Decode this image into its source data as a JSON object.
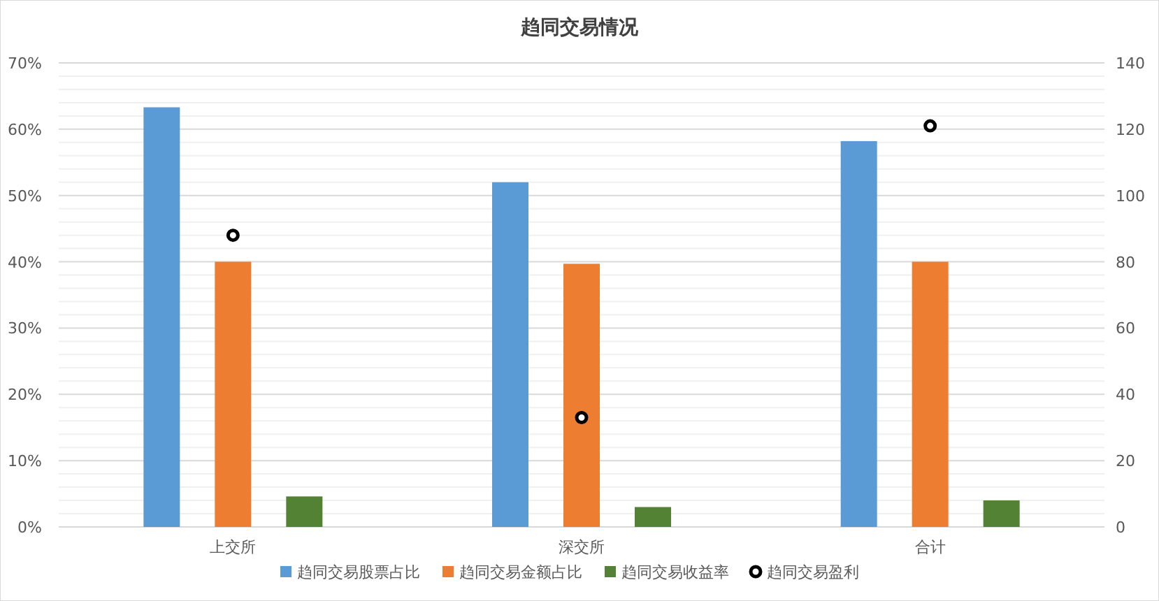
{
  "chart_data": {
    "type": "bar",
    "title": "趋同交易情况",
    "categories": [
      "上交所",
      "深交所",
      "合计"
    ],
    "series": [
      {
        "name": "趋同交易股票占比",
        "color": "#5b9bd5",
        "values": [
          63.3,
          52,
          58.2
        ]
      },
      {
        "name": "趋同交易金额占比",
        "color": "#ed7d31",
        "values": [
          40,
          39.7,
          40
        ]
      },
      {
        "name": "趋同交易收益率",
        "color": "#548235",
        "values": [
          4.6,
          3,
          4
        ]
      },
      {
        "name": "趋同交易盈利",
        "type": "scatter",
        "axis": "y2",
        "color": "#000000",
        "marker": "circle",
        "values": [
          88,
          33,
          121
        ]
      }
    ],
    "ylim": [
      0,
      70
    ],
    "yticks": [
      {
        "value": 0,
        "label": "0%"
      },
      {
        "value": 10,
        "label": "10%"
      },
      {
        "value": 20,
        "label": "20%"
      },
      {
        "value": 30,
        "label": "30%"
      },
      {
        "value": 40,
        "label": "40%"
      },
      {
        "value": 50,
        "label": "50%"
      },
      {
        "value": 60,
        "label": "60%"
      },
      {
        "value": 70,
        "label": "70%"
      }
    ],
    "y2lim": [
      0,
      140
    ],
    "y2ticks": [
      0,
      20,
      40,
      60,
      80,
      100,
      120,
      140
    ],
    "grid": "y",
    "legend": "bottom"
  }
}
